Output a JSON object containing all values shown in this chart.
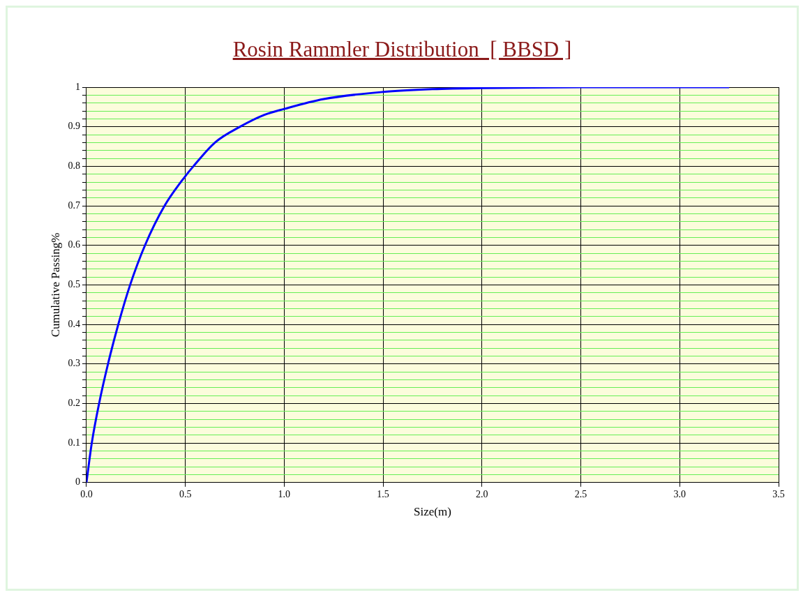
{
  "chart_data": {
    "type": "line",
    "title": "Rosin Rammler Distribution  [ BBSD ]",
    "xlabel": "Size(m)",
    "ylabel": "Cumulative Passing%",
    "x": [
      0,
      0.027,
      0.064,
      0.109,
      0.161,
      0.221,
      0.296,
      0.395,
      0.5,
      0.541,
      0.65,
      0.777,
      0.9,
      1.0,
      1.2,
      1.5,
      1.75,
      2.0,
      2.5,
      3.25
    ],
    "series": [
      {
        "color": "#0000ff",
        "values": [
          0,
          0.1,
          0.2,
          0.3,
          0.4,
          0.5,
          0.6,
          0.7,
          0.775,
          0.8,
          0.86,
          0.9,
          0.93,
          0.945,
          0.97,
          0.988,
          0.995,
          0.998,
          1.0,
          1.0
        ]
      }
    ],
    "xlim": [
      0,
      3.5
    ],
    "ylim": [
      0,
      1
    ],
    "xticks": [
      {
        "value": 0,
        "label": "0.0"
      },
      {
        "value": 0.5,
        "label": "0.5"
      },
      {
        "value": 1,
        "label": "1.0"
      },
      {
        "value": 1.5,
        "label": "1.5"
      },
      {
        "value": 2,
        "label": "2.0"
      },
      {
        "value": 2.5,
        "label": "2.5"
      },
      {
        "value": 3,
        "label": "3.0"
      },
      {
        "value": 3.5,
        "label": "3.5"
      }
    ],
    "yticks": [
      0,
      {
        "value": 0.02,
        "label": null
      },
      {
        "value": 0.04,
        "label": null
      },
      {
        "value": 0.06,
        "label": null
      },
      {
        "value": 0.08,
        "label": null
      },
      0.1,
      {
        "value": 0.12,
        "label": null
      },
      {
        "value": 0.14,
        "label": null
      },
      {
        "value": 0.16,
        "label": null
      },
      {
        "value": 0.18,
        "label": null
      },
      0.2,
      {
        "value": 0.22,
        "label": null
      },
      {
        "value": 0.24,
        "label": null
      },
      {
        "value": 0.26,
        "label": null
      },
      {
        "value": 0.28,
        "label": null
      },
      0.3,
      {
        "value": 0.32,
        "label": null
      },
      {
        "value": 0.34,
        "label": null
      },
      {
        "value": 0.36,
        "label": null
      },
      {
        "value": 0.38,
        "label": null
      },
      0.4,
      {
        "value": 0.42,
        "label": null
      },
      {
        "value": 0.44,
        "label": null
      },
      {
        "value": 0.46,
        "label": null
      },
      {
        "value": 0.48,
        "label": null
      },
      0.5,
      {
        "value": 0.52,
        "label": null
      },
      {
        "value": 0.54,
        "label": null
      },
      {
        "value": 0.56,
        "label": null
      },
      {
        "value": 0.58,
        "label": null
      },
      0.6,
      {
        "value": 0.62,
        "label": null
      },
      {
        "value": 0.64,
        "label": null
      },
      {
        "value": 0.66,
        "label": null
      },
      {
        "value": 0.68,
        "label": null
      },
      0.7,
      {
        "value": 0.72,
        "label": null
      },
      {
        "value": 0.74,
        "label": null
      },
      {
        "value": 0.76,
        "label": null
      },
      {
        "value": 0.78,
        "label": null
      },
      0.8,
      {
        "value": 0.82,
        "label": null
      },
      {
        "value": 0.84,
        "label": null
      },
      {
        "value": 0.86,
        "label": null
      },
      {
        "value": 0.88,
        "label": null
      },
      0.9,
      {
        "value": 0.92,
        "label": null
      },
      {
        "value": 0.94,
        "label": null
      },
      {
        "value": 0.96,
        "label": null
      },
      {
        "value": 0.98,
        "label": null
      },
      1
    ],
    "grid": true
  }
}
